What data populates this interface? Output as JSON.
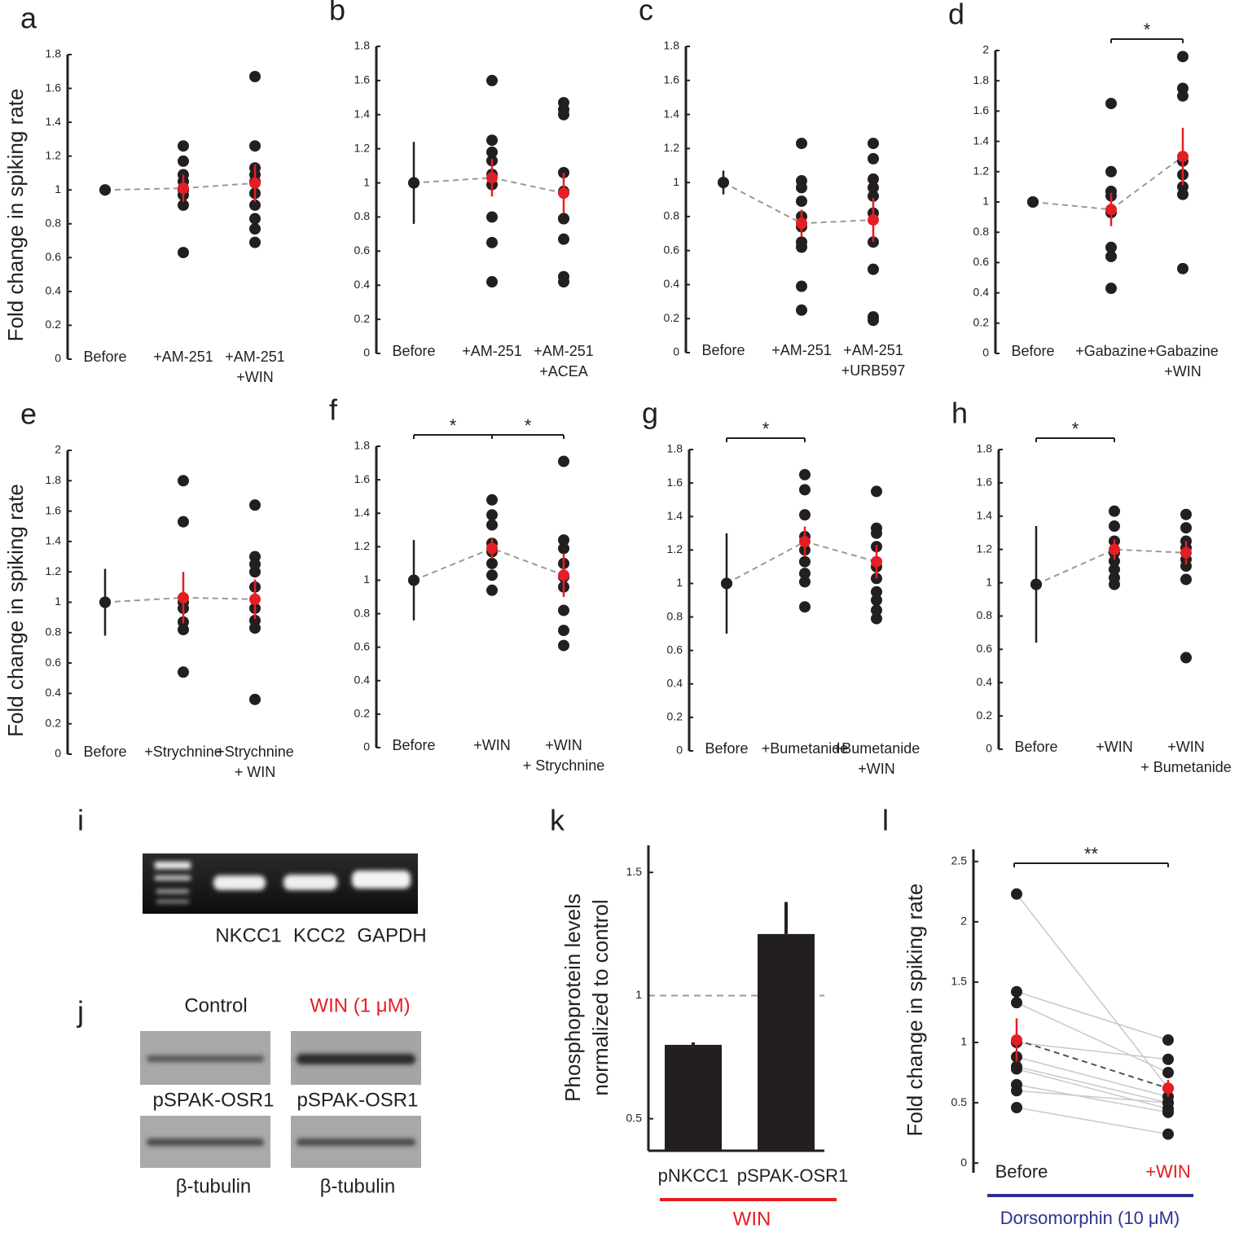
{
  "chart_data": [
    {
      "type": "dotplot",
      "panel": "a",
      "ylabel": "Fold change in spiking rate",
      "categories": [
        [
          "Before"
        ],
        [
          "+AM-251"
        ],
        [
          "+AM-251",
          "+WIN"
        ]
      ],
      "points": [
        [
          1
        ],
        [
          1.26,
          1.17,
          1.09,
          1.05,
          1.0,
          0.97,
          0.91,
          0.63
        ],
        [
          1.67,
          1.26,
          1.13,
          1.09,
          1.05,
          0.98,
          0.91,
          0.83,
          0.77,
          0.69
        ]
      ],
      "means": [
        1,
        1.01,
        1.04
      ],
      "errors": [
        0,
        0.08,
        0.11
      ],
      "point_color": "#231f20",
      "mean_colors": [
        "#231f20",
        "#e31e24",
        "#e31e24"
      ],
      "ylim": [
        0,
        1.8
      ],
      "yticks": [
        0,
        0.2,
        0.4,
        0.6,
        0.8,
        1,
        1.2,
        1.4,
        1.6,
        1.8
      ],
      "significance": []
    },
    {
      "type": "dotplot",
      "panel": "b",
      "categories": [
        [
          "Before"
        ],
        [
          "+AM-251"
        ],
        [
          "+AM-251",
          "+ACEA"
        ]
      ],
      "points": [
        [
          1
        ],
        [
          1.6,
          1.25,
          1.18,
          1.13,
          1.05,
          0.99,
          0.8,
          0.65,
          0.42
        ],
        [
          1.47,
          1.43,
          1.4,
          1.06,
          0.95,
          0.79,
          0.79,
          0.67,
          0.45,
          0.42
        ]
      ],
      "means": [
        1,
        1.03,
        0.94
      ],
      "errors": [
        0.24,
        0.11,
        0.12
      ],
      "point_color": "#231f20",
      "mean_colors": [
        "#231f20",
        "#e31e24",
        "#e31e24"
      ],
      "ylim": [
        0,
        1.8
      ],
      "yticks": [
        0,
        0.2,
        0.4,
        0.6,
        0.8,
        1,
        1.2,
        1.4,
        1.6,
        1.8
      ],
      "significance": []
    },
    {
      "type": "dotplot",
      "panel": "c",
      "categories": [
        [
          "Before"
        ],
        [
          "+AM-251"
        ],
        [
          "+AM-251",
          "+URB597"
        ]
      ],
      "points": [
        [
          1
        ],
        [
          1.23,
          1.01,
          0.97,
          0.89,
          0.8,
          0.74,
          0.65,
          0.62,
          0.39,
          0.25
        ],
        [
          1.23,
          1.14,
          1.02,
          0.97,
          0.92,
          0.82,
          0.65,
          0.49,
          0.21,
          0.19
        ]
      ],
      "means": [
        1,
        0.76,
        0.78
      ],
      "errors": [
        0.07,
        0.08,
        0.13
      ],
      "point_color": "#231f20",
      "mean_colors": [
        "#231f20",
        "#e31e24",
        "#e31e24"
      ],
      "ylim": [
        0,
        1.8
      ],
      "yticks": [
        0,
        0.2,
        0.4,
        0.6,
        0.8,
        1,
        1.2,
        1.4,
        1.6,
        1.8
      ],
      "significance": []
    },
    {
      "type": "dotplot",
      "panel": "d",
      "categories": [
        [
          "Before"
        ],
        [
          "+Gabazine"
        ],
        [
          "+Gabazine",
          "+WIN"
        ]
      ],
      "points": [
        [
          1
        ],
        [
          1.65,
          1.2,
          1.07,
          1.04,
          0.93,
          0.7,
          0.64,
          0.43
        ],
        [
          1.96,
          1.75,
          1.7,
          1.3,
          1.27,
          1.18,
          1.1,
          1.05,
          0.56
        ]
      ],
      "means": [
        1,
        0.95,
        1.3
      ],
      "errors": [
        0,
        0.11,
        0.19
      ],
      "point_color": "#231f20",
      "mean_colors": [
        "#231f20",
        "#e31e24",
        "#e31e24"
      ],
      "ylim": [
        0,
        2
      ],
      "yticks": [
        0,
        0.2,
        0.4,
        0.6,
        0.8,
        1,
        1.2,
        1.4,
        1.6,
        1.8,
        2
      ],
      "significance": [
        {
          "from": 1,
          "to": 2,
          "label": "*"
        }
      ]
    },
    {
      "type": "dotplot",
      "panel": "e",
      "ylabel": "Fold change in spiking rate",
      "categories": [
        [
          "Before"
        ],
        [
          "+Strychnine"
        ],
        [
          "+Strychnine",
          "+ WIN"
        ]
      ],
      "points": [
        [
          1
        ],
        [
          1.8,
          1.53,
          1.0,
          0.96,
          0.87,
          0.82,
          0.54
        ],
        [
          1.64,
          1.3,
          1.25,
          1.2,
          1.1,
          0.96,
          0.88,
          0.83,
          0.36
        ]
      ],
      "means": [
        1,
        1.03,
        1.02
      ],
      "errors": [
        0.22,
        0.17,
        0.13
      ],
      "point_color": "#231f20",
      "mean_colors": [
        "#231f20",
        "#e31e24",
        "#e31e24"
      ],
      "ylim": [
        0,
        2
      ],
      "yticks": [
        0,
        0.2,
        0.4,
        0.6,
        0.8,
        1,
        1.2,
        1.4,
        1.6,
        1.8,
        2
      ],
      "significance": []
    },
    {
      "type": "dotplot",
      "panel": "f",
      "categories": [
        [
          "Before"
        ],
        [
          "+WIN"
        ],
        [
          "+WIN",
          "+ Strychnine"
        ]
      ],
      "points": [
        [
          1
        ],
        [
          1.48,
          1.39,
          1.33,
          1.22,
          1.17,
          1.1,
          1.03,
          0.94
        ],
        [
          1.71,
          1.24,
          1.19,
          1.1,
          1.02,
          0.96,
          0.82,
          0.7,
          0.61
        ]
      ],
      "means": [
        1,
        1.19,
        1.03
      ],
      "errors": [
        0.24,
        0.06,
        0.13
      ],
      "point_color": "#231f20",
      "mean_colors": [
        "#231f20",
        "#e31e24",
        "#e31e24"
      ],
      "ylim": [
        0,
        1.8
      ],
      "yticks": [
        0,
        0.2,
        0.4,
        0.6,
        0.8,
        1,
        1.2,
        1.4,
        1.6,
        1.8
      ],
      "significance": [
        {
          "from": 0,
          "to": 1,
          "label": "*"
        },
        {
          "from": 1,
          "to": 2,
          "label": "*"
        }
      ]
    },
    {
      "type": "dotplot",
      "panel": "g",
      "categories": [
        [
          "Before"
        ],
        [
          "+Bumetanide"
        ],
        [
          "+Bumetanide",
          "+WIN"
        ]
      ],
      "points": [
        [
          1
        ],
        [
          1.65,
          1.56,
          1.41,
          1.28,
          1.2,
          1.13,
          1.06,
          1.01,
          0.86
        ],
        [
          1.55,
          1.33,
          1.3,
          1.22,
          1.1,
          1.03,
          0.95,
          0.9,
          0.84,
          0.79
        ]
      ],
      "means": [
        1,
        1.25,
        1.13
      ],
      "errors": [
        0.3,
        0.09,
        0.1
      ],
      "point_color": "#231f20",
      "mean_colors": [
        "#231f20",
        "#e31e24",
        "#e31e24"
      ],
      "ylim": [
        0,
        1.8
      ],
      "yticks": [
        0,
        0.2,
        0.4,
        0.6,
        0.8,
        1,
        1.2,
        1.4,
        1.6,
        1.8
      ],
      "significance": [
        {
          "from": 0,
          "to": 1,
          "label": "*"
        }
      ]
    },
    {
      "type": "dotplot",
      "panel": "h",
      "categories": [
        [
          "Before"
        ],
        [
          "+WIN"
        ],
        [
          "+WIN",
          "+ Bumetanide"
        ]
      ],
      "points": [
        [
          0.99
        ],
        [
          1.43,
          1.34,
          1.25,
          1.18,
          1.13,
          1.08,
          1.03,
          0.99
        ],
        [
          1.41,
          1.33,
          1.25,
          1.21,
          1.14,
          1.1,
          1.02,
          0.55
        ]
      ],
      "means": [
        0.99,
        1.2,
        1.18
      ],
      "errors": [
        0.35,
        0.06,
        0.07
      ],
      "point_color": "#231f20",
      "mean_colors": [
        "#231f20",
        "#e31e24",
        "#e31e24"
      ],
      "ylim": [
        0,
        1.8
      ],
      "yticks": [
        0,
        0.2,
        0.4,
        0.6,
        0.8,
        1,
        1.2,
        1.4,
        1.6,
        1.8
      ],
      "significance": [
        {
          "from": 0,
          "to": 1,
          "label": "*"
        }
      ]
    },
    {
      "type": "bar",
      "panel": "k",
      "ylabel": [
        "Phosphoprotein levels",
        "normalized to control"
      ],
      "categories": [
        "pNKCC1",
        "pSPAK-OSR1"
      ],
      "values": [
        0.8,
        1.25
      ],
      "errors": [
        0.01,
        0.13
      ],
      "color": "#231f20",
      "ylim": [
        0.37,
        1.61
      ],
      "yticks": [
        0.5,
        1,
        1.5
      ],
      "reference_line": 1,
      "group": {
        "label": "WIN",
        "color": "#e31e24"
      }
    },
    {
      "type": "paired",
      "panel": "l",
      "ylabel": "Fold change in spiking rate",
      "series": [
        {
          "name": "Before",
          "color": "#231f20",
          "values": [
            2.23,
            1.42,
            1.33,
            1.0,
            0.88,
            0.8,
            0.78,
            0.65,
            0.6,
            0.46
          ]
        },
        {
          "name": "+WIN",
          "color": "#e31e24",
          "values": [
            0.62,
            1.02,
            0.75,
            0.86,
            0.55,
            0.5,
            0.45,
            0.42,
            0.5,
            0.24
          ]
        }
      ],
      "means": [
        1.02,
        0.62
      ],
      "errors": [
        0.18,
        0.07
      ],
      "mean_color": "#e31e24",
      "ylim": [
        -0.08,
        2.6
      ],
      "yticks": [
        0,
        0.5,
        1,
        1.5,
        2,
        2.5
      ],
      "significance": [
        {
          "from": 0,
          "to": 1,
          "label": "**"
        }
      ],
      "group": {
        "label": "Dorsomorphin (10 μM)",
        "color": "#2e3192"
      }
    }
  ],
  "gel": {
    "panel": "i",
    "lanes": [
      "NKCC1",
      "KCC2",
      "GAPDH"
    ]
  },
  "blot": {
    "panel": "j",
    "conditions": [
      "Control",
      "WIN (1 μM)"
    ],
    "condition_colors": [
      "#231f20",
      "#e31e24"
    ],
    "rows": [
      "pSPAK-OSR1",
      "β-tubulin"
    ]
  }
}
